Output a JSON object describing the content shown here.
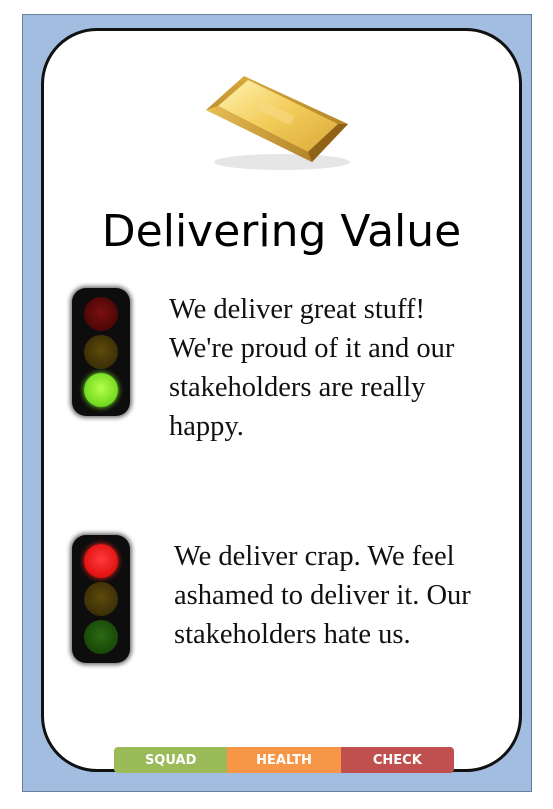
{
  "card": {
    "title": "Delivering Value",
    "image": "gold-bar-icon",
    "good": {
      "light": "green",
      "text": "We deliver great stuff! We're proud of it and our stakeholders are really happy."
    },
    "bad": {
      "light": "red",
      "text": "We deliver crap. We feel ashamed to deliver it. Our stakeholders hate us."
    }
  },
  "footer": {
    "squad": "SQUAD",
    "health": "HEALTH",
    "check": "CHECK"
  },
  "colors": {
    "background_frame": "#a3bde0",
    "squad": "#9bbb59",
    "health": "#f79646",
    "check": "#c0504d",
    "gold": "#e2b84a"
  }
}
